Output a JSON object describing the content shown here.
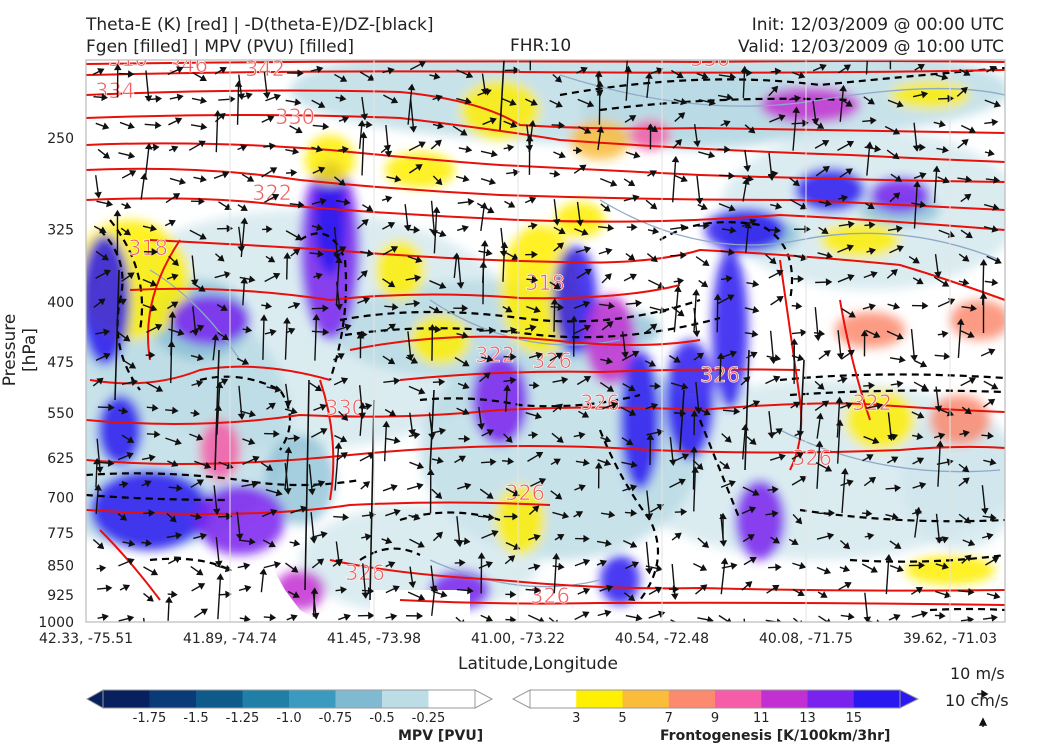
{
  "header": {
    "line1_left": "Theta-E (K) [red] | -D(theta-E)/DZ-[black]",
    "line2_left": "Fgen [filled] | MPV (PVU) [filled]",
    "fhr": "FHR:10",
    "init": "Init: 12/03/2009 @ 00:00 UTC",
    "valid": "Valid: 12/03/2009 @ 10:00 UTC"
  },
  "chart_data": {
    "type": "cross-section",
    "xlabel": "Latitude,Longitude",
    "ylabel": "Pressure [hPa]",
    "x_ticks": [
      "42.33, -75.51",
      "41.89, -74.74",
      "41.45, -73.98",
      "41.00, -73.22",
      "40.54, -72.48",
      "40.08, -71.75",
      "39.62, -71.03"
    ],
    "y_ticks": [
      250,
      325,
      400,
      475,
      550,
      625,
      700,
      775,
      850,
      925,
      1000
    ],
    "ylim": [
      1000,
      200
    ],
    "y_scale": "log",
    "theta_e_contour_labels": [
      "310",
      "346",
      "342",
      "336",
      "334",
      "330",
      "322",
      "318",
      "318",
      "322",
      "326",
      "326",
      "326",
      "322",
      "326",
      "326",
      "330",
      "326",
      "326"
    ],
    "mpv_colorbar": {
      "label": "MPV [PVU]",
      "ticks": [
        "-1.75",
        "-1.5",
        "-1.25",
        "-1.0",
        "-0.75",
        "-0.5",
        "-0.25"
      ],
      "colors": [
        "#08205e",
        "#0b3a78",
        "#0e5a8a",
        "#1f7fa6",
        "#3b9ac0",
        "#7fb9d2",
        "#bcdce6",
        "#ffffff"
      ]
    },
    "fgen_colorbar": {
      "label": "Frontogenesis [K/100km/3hr]",
      "ticks": [
        "3",
        "5",
        "7",
        "9",
        "11",
        "13",
        "15"
      ],
      "colors": [
        "#ffffff",
        "#ffef00",
        "#fbbc3c",
        "#fb8a6e",
        "#f65ca8",
        "#c330d2",
        "#7a22ee",
        "#2a18f0"
      ]
    },
    "vector_key": {
      "horizontal": "10 m/s",
      "vertical": "10 cm/s"
    }
  }
}
